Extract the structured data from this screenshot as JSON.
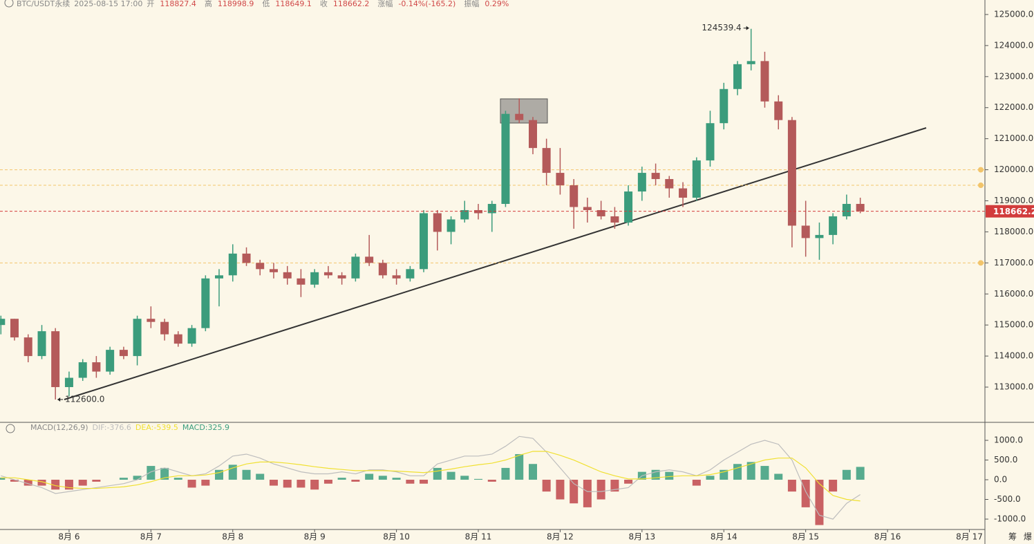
{
  "header": {
    "symbol": "BTC/USDT永续",
    "time": "2025-08-15 17:00",
    "fields": [
      {
        "label": "开",
        "value": "118827.4"
      },
      {
        "label": "高",
        "value": "118998.9"
      },
      {
        "label": "低",
        "value": "118649.1"
      },
      {
        "label": "收",
        "value": "118662.2"
      },
      {
        "label": "涨幅",
        "value": "-0.14%(-165.2)"
      },
      {
        "label": "振幅",
        "value": "0.29%"
      }
    ]
  },
  "toolbar": [
    "筹",
    "爆"
  ],
  "chart_data": [
    {
      "type": "candlestick",
      "up_color": "#3b9c7c",
      "down_color": "#b45a5a",
      "x": [
        5.167,
        5.333,
        5.5,
        5.667,
        5.833,
        6,
        6.167,
        6.333,
        6.5,
        6.667,
        6.833,
        7,
        7.167,
        7.333,
        7.5,
        7.667,
        7.833,
        8,
        8.167,
        8.333,
        8.5,
        8.667,
        8.833,
        9,
        9.167,
        9.333,
        9.5,
        9.667,
        9.833,
        10,
        10.167,
        10.333,
        10.5,
        10.667,
        10.833,
        11,
        11.167,
        11.333,
        11.5,
        11.667,
        11.833,
        12,
        12.167,
        12.333,
        12.5,
        12.667,
        12.833,
        13,
        13.167,
        13.333,
        13.5,
        13.667,
        13.833,
        14,
        14.167,
        14.333,
        14.5,
        14.667,
        14.833,
        15,
        15.167,
        15.333,
        15.5,
        15.667
      ],
      "open": [
        115000,
        115200,
        114600,
        114000,
        114800,
        113000,
        113300,
        113800,
        113500,
        114200,
        114000,
        115200,
        115100,
        114700,
        114400,
        114900,
        116500,
        116600,
        117300,
        117000,
        116800,
        116700,
        116500,
        116300,
        116700,
        116600,
        116500,
        117200,
        117000,
        116600,
        116500,
        116800,
        118600,
        118000,
        118400,
        118700,
        118600,
        118900,
        121800,
        121600,
        120700,
        119900,
        119500,
        118800,
        118700,
        118500,
        118300,
        119300,
        119900,
        119700,
        119400,
        119100,
        120300,
        121500,
        122600,
        123400,
        123500,
        122200,
        121600,
        118200,
        117800,
        117900,
        118500,
        118900
      ],
      "high": [
        115300,
        115200,
        114700,
        115000,
        114900,
        113500,
        113900,
        114000,
        114300,
        114300,
        115300,
        115600,
        115200,
        114800,
        115000,
        116600,
        116800,
        117600,
        117500,
        117100,
        117000,
        116900,
        116800,
        116800,
        116900,
        116700,
        117300,
        117900,
        117100,
        116800,
        116900,
        118700,
        118700,
        118500,
        119000,
        118900,
        119000,
        121900,
        122300,
        121700,
        121000,
        120700,
        119700,
        119100,
        119000,
        118800,
        119500,
        120100,
        120200,
        119800,
        119600,
        120400,
        121900,
        122800,
        123500,
        124539.4,
        123800,
        122400,
        121700,
        119000,
        118300,
        118600,
        119200,
        119100
      ],
      "low": [
        114700,
        114500,
        113800,
        113900,
        112600,
        112700,
        113200,
        113300,
        113400,
        113900,
        113700,
        114900,
        114500,
        114300,
        114300,
        114800,
        115600,
        116400,
        116900,
        116600,
        116500,
        116300,
        115900,
        116200,
        116500,
        116300,
        116400,
        116900,
        116500,
        116300,
        116400,
        116700,
        117400,
        117600,
        118300,
        118400,
        118000,
        118800,
        121500,
        120500,
        119500,
        119200,
        118100,
        118300,
        118400,
        118100,
        118200,
        119000,
        119500,
        119100,
        118800,
        119000,
        120100,
        121300,
        122400,
        123200,
        122000,
        121300,
        117500,
        117200,
        117100,
        117600,
        118400,
        118600
      ],
      "close": [
        115200,
        114600,
        114000,
        114800,
        113000,
        113300,
        113800,
        113500,
        114200,
        114000,
        115200,
        115100,
        114700,
        114400,
        114900,
        116500,
        116600,
        117300,
        117000,
        116800,
        116700,
        116500,
        116300,
        116700,
        116600,
        116500,
        117200,
        117000,
        116600,
        116500,
        116800,
        118600,
        118000,
        118400,
        118700,
        118600,
        118900,
        121800,
        121600,
        120700,
        119900,
        119500,
        118800,
        118700,
        118500,
        118300,
        119300,
        119900,
        119700,
        119400,
        119100,
        120300,
        121500,
        122600,
        123400,
        123500,
        122200,
        121600,
        118200,
        117800,
        117900,
        118500,
        118900,
        118662.2
      ],
      "xlim": [
        5.156,
        17.19
      ],
      "ylim": [
        111865,
        125467
      ],
      "yticks": [
        {
          "value": 113000,
          "label": "113000.0"
        },
        {
          "value": 114000,
          "label": "114000.0"
        },
        {
          "value": 115000,
          "label": "115000.0"
        },
        {
          "value": 116000,
          "label": "116000.0"
        },
        {
          "value": 117000,
          "label": "117000.0"
        },
        {
          "value": 118000,
          "label": "118000.0"
        },
        {
          "value": 119000,
          "label": "119000.0"
        },
        {
          "value": 120000,
          "label": "120000.0"
        },
        {
          "value": 121000,
          "label": "121000.0"
        },
        {
          "value": 122000,
          "label": "122000.0"
        },
        {
          "value": 123000,
          "label": "123000.0"
        },
        {
          "value": 124000,
          "label": "124000.0"
        },
        {
          "value": 125000,
          "label": "125000.0"
        }
      ],
      "levels": [
        120000,
        119500,
        117000
      ],
      "level_color": "#f2c46a",
      "last_price": 118662.2,
      "last_color": "#d23c3c",
      "annotations": [
        {
          "x": 14.333,
          "value": 124539.4,
          "label": "124539.4",
          "side": "left"
        },
        {
          "x": 5.833,
          "value": 112600,
          "label": "112600.0",
          "side": "right"
        }
      ]
    },
    {
      "type": "macd",
      "title": "MACD(12,26,9)",
      "legend": [
        "DIF:-376.6",
        "DEA:-539.5",
        "MACD:325.9"
      ],
      "dif_color": "#bdbdbd",
      "dea_color": "#f0e030",
      "up_color": "#3a9e7e",
      "down_color": "#c0474b",
      "x": [
        5.167,
        5.333,
        5.5,
        5.667,
        5.833,
        6,
        6.167,
        6.333,
        6.5,
        6.667,
        6.833,
        7,
        7.167,
        7.333,
        7.5,
        7.667,
        7.833,
        8,
        8.167,
        8.333,
        8.5,
        8.667,
        8.833,
        9,
        9.167,
        9.333,
        9.5,
        9.667,
        9.833,
        10,
        10.167,
        10.333,
        10.5,
        10.667,
        10.833,
        11,
        11.167,
        11.333,
        11.5,
        11.667,
        11.833,
        12,
        12.167,
        12.333,
        12.5,
        12.667,
        12.833,
        13,
        13.167,
        13.333,
        13.5,
        13.667,
        13.833,
        14,
        14.167,
        14.333,
        14.5,
        14.667,
        14.833,
        15,
        15.167,
        15.333,
        15.5,
        15.667
      ],
      "hist": [
        50,
        -50,
        -150,
        -150,
        -250,
        -250,
        -150,
        -50,
        0,
        50,
        100,
        350,
        300,
        50,
        -200,
        -150,
        250,
        380,
        250,
        150,
        -150,
        -200,
        -200,
        -250,
        -100,
        50,
        -50,
        150,
        100,
        50,
        -100,
        -100,
        300,
        200,
        100,
        20,
        -50,
        300,
        650,
        400,
        -300,
        -500,
        -600,
        -700,
        -500,
        -300,
        -100,
        200,
        250,
        200,
        0,
        -150,
        100,
        250,
        400,
        450,
        350,
        150,
        -300,
        -700,
        -1150,
        -300,
        250,
        325.9
      ],
      "dif": [
        100,
        0,
        -100,
        -200,
        -350,
        -300,
        -250,
        -200,
        -150,
        -100,
        0,
        200,
        300,
        200,
        100,
        150,
        350,
        600,
        650,
        550,
        400,
        300,
        200,
        150,
        150,
        200,
        150,
        250,
        250,
        200,
        100,
        100,
        400,
        500,
        600,
        600,
        650,
        850,
        1100,
        1050,
        700,
        300,
        -100,
        -300,
        -300,
        -250,
        -200,
        100,
        200,
        250,
        200,
        100,
        250,
        500,
        700,
        900,
        1000,
        900,
        500,
        -300,
        -900,
        -1000,
        -600,
        -376.6
      ],
      "dea": [
        50,
        50,
        0,
        -50,
        -150,
        -200,
        -220,
        -220,
        -200,
        -180,
        -130,
        -50,
        50,
        100,
        100,
        120,
        180,
        300,
        400,
        450,
        450,
        420,
        380,
        330,
        290,
        260,
        230,
        230,
        230,
        220,
        200,
        180,
        220,
        270,
        330,
        380,
        420,
        500,
        620,
        720,
        720,
        620,
        500,
        350,
        200,
        100,
        20,
        20,
        50,
        80,
        100,
        100,
        130,
        200,
        300,
        400,
        500,
        550,
        550,
        300,
        -100,
        -400,
        -500,
        -539.5
      ],
      "xlim": [
        5.156,
        17.19
      ],
      "ylim": [
        -1263,
        1439
      ],
      "yticks": [
        {
          "value": 1000,
          "label": "1000.0"
        },
        {
          "value": 500,
          "label": "500.0"
        },
        {
          "value": 0,
          "label": "0.0"
        },
        {
          "value": -500,
          "label": "-500.0"
        },
        {
          "value": -1000,
          "label": "-1000.0"
        }
      ],
      "xticks": [
        {
          "value": 6,
          "label": "8月 6"
        },
        {
          "value": 7,
          "label": "8月 7"
        },
        {
          "value": 8,
          "label": "8月 8"
        },
        {
          "value": 9,
          "label": "8月 9"
        },
        {
          "value": 10,
          "label": "8月 10"
        },
        {
          "value": 11,
          "label": "8月 11"
        },
        {
          "value": 12,
          "label": "8月 12"
        },
        {
          "value": 13,
          "label": "8月 13"
        },
        {
          "value": 14,
          "label": "8月 14"
        },
        {
          "value": 15,
          "label": "8月 15"
        },
        {
          "value": 16,
          "label": "8月 16"
        },
        {
          "value": 17,
          "label": "8月 17"
        }
      ]
    }
  ]
}
